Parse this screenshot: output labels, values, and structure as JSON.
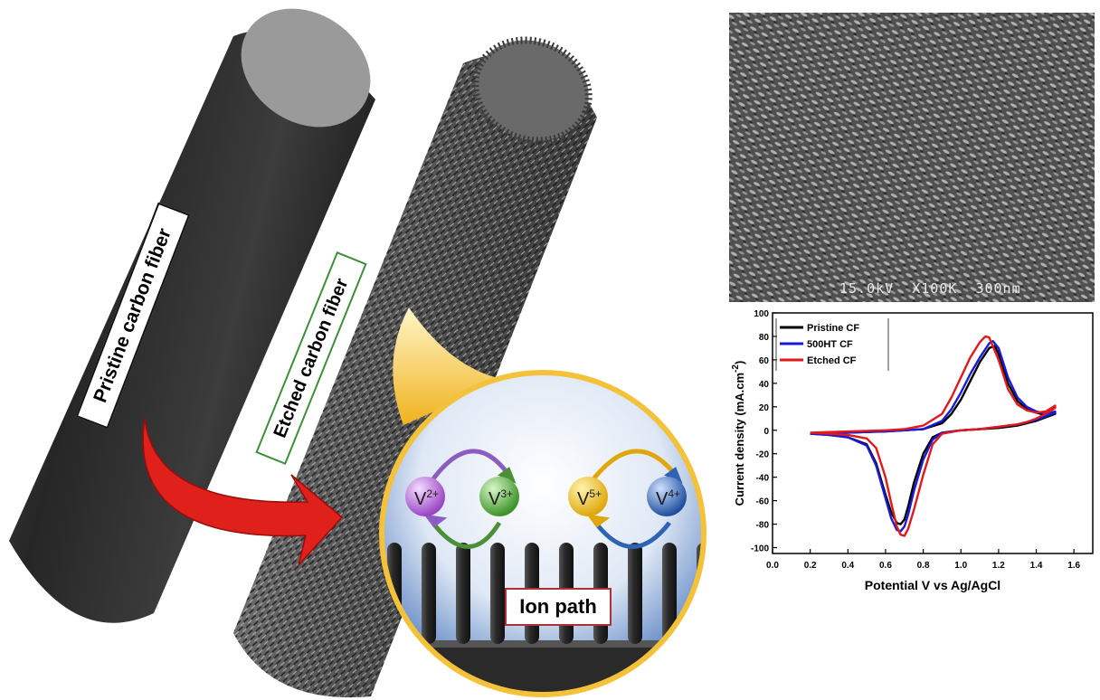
{
  "figure": {
    "pristine_label": "Pristine carbon fiber",
    "etched_label": "Etched carbon fiber",
    "ion_path_label": "Ion path",
    "ions": {
      "v2": {
        "base": "V",
        "charge": "2+",
        "color": "#b25fd6"
      },
      "v3": {
        "base": "V",
        "charge": "3+",
        "color": "#4fae3a"
      },
      "v5": {
        "base": "V",
        "charge": "5+",
        "color": "#f2c21a"
      },
      "v4": {
        "base": "V",
        "charge": "4+",
        "color": "#2f63b3"
      }
    },
    "sem_caption": "15.0kV  X100K  300nm",
    "colors": {
      "arrow": "#e0201b",
      "callout": "#f3c23a",
      "fiber": "#2b2b2b",
      "etched_border": "#3e8e3a",
      "ion_border": "#b0303a"
    }
  },
  "chart_data": {
    "type": "line",
    "xlabel": "Potential V vs Ag/AgCl",
    "ylabel": "Current density (mA.cm",
    "ylabel_sup": "-2",
    "ylabel_close": ")",
    "xlim": [
      0.0,
      1.7
    ],
    "ylim": [
      -105,
      100
    ],
    "xticks": [
      "0.0",
      "0.2",
      "0.4",
      "0.6",
      "0.8",
      "1.0",
      "1.2",
      "1.4",
      "1.6"
    ],
    "xtick_values": [
      0.0,
      0.2,
      0.4,
      0.6,
      0.8,
      1.0,
      1.2,
      1.4,
      1.6
    ],
    "yticks": [
      "100",
      "80",
      "60",
      "40",
      "20",
      "0",
      "-20",
      "-40",
      "-60",
      "-80",
      "-100"
    ],
    "ytick_values": [
      100,
      80,
      60,
      40,
      20,
      0,
      -20,
      -40,
      -60,
      -80,
      -100
    ],
    "legend_position": "top-left",
    "series": [
      {
        "name": "Pristine CF",
        "color": "#000000",
        "x": [
          0.2,
          0.3,
          0.4,
          0.5,
          0.6,
          0.7,
          0.8,
          0.9,
          0.95,
          1.0,
          1.05,
          1.1,
          1.15,
          1.18,
          1.2,
          1.25,
          1.3,
          1.35,
          1.4,
          1.45,
          1.5,
          1.5,
          1.45,
          1.4,
          1.35,
          1.3,
          1.25,
          1.2,
          1.1,
          1.0,
          0.9,
          0.85,
          0.8,
          0.75,
          0.72,
          0.7,
          0.68,
          0.66,
          0.63,
          0.6,
          0.55,
          0.5,
          0.4,
          0.3,
          0.2
        ],
        "y": [
          -3,
          -2.5,
          -2,
          -1.5,
          -1,
          0,
          1,
          6,
          14,
          26,
          42,
          58,
          70,
          72,
          65,
          40,
          25,
          18,
          15,
          13,
          15,
          14,
          11,
          8,
          6,
          4,
          3,
          2,
          1,
          0,
          -2,
          -6,
          -20,
          -45,
          -65,
          -76,
          -80,
          -79,
          -70,
          -55,
          -28,
          -12,
          -6,
          -4,
          -3
        ]
      },
      {
        "name": "500HT  CF",
        "color": "#1a1ad8",
        "x": [
          0.2,
          0.3,
          0.4,
          0.5,
          0.6,
          0.7,
          0.8,
          0.9,
          0.95,
          1.0,
          1.05,
          1.1,
          1.15,
          1.17,
          1.2,
          1.25,
          1.3,
          1.35,
          1.4,
          1.45,
          1.5,
          1.5,
          1.45,
          1.4,
          1.35,
          1.3,
          1.25,
          1.2,
          1.1,
          1.0,
          0.9,
          0.85,
          0.8,
          0.75,
          0.72,
          0.7,
          0.68,
          0.66,
          0.63,
          0.6,
          0.55,
          0.5,
          0.4,
          0.3,
          0.2
        ],
        "y": [
          -3,
          -2.5,
          -2,
          -1.5,
          -1,
          0,
          1,
          8,
          18,
          32,
          48,
          62,
          74,
          76,
          70,
          45,
          28,
          20,
          16,
          14,
          16,
          15,
          12,
          9,
          7,
          5,
          4,
          3,
          1,
          0,
          -2,
          -8,
          -25,
          -52,
          -72,
          -82,
          -86,
          -85,
          -75,
          -58,
          -30,
          -13,
          -6,
          -4,
          -3
        ]
      },
      {
        "name": "Etched CF",
        "color": "#e01a1a",
        "x": [
          0.2,
          0.3,
          0.4,
          0.5,
          0.6,
          0.7,
          0.8,
          0.9,
          0.95,
          1.0,
          1.05,
          1.1,
          1.13,
          1.15,
          1.2,
          1.25,
          1.3,
          1.35,
          1.4,
          1.45,
          1.5,
          1.5,
          1.45,
          1.4,
          1.35,
          1.3,
          1.25,
          1.2,
          1.1,
          1.0,
          0.9,
          0.85,
          0.8,
          0.75,
          0.72,
          0.7,
          0.68,
          0.66,
          0.63,
          0.6,
          0.55,
          0.5,
          0.4,
          0.3,
          0.2
        ],
        "y": [
          -2,
          -1.5,
          -1,
          -0.5,
          0,
          1,
          4,
          14,
          28,
          45,
          62,
          75,
          80,
          79,
          60,
          35,
          22,
          17,
          15,
          16,
          21,
          19,
          14,
          10,
          7,
          5,
          4,
          3,
          1,
          0,
          -3,
          -12,
          -38,
          -68,
          -84,
          -90,
          -89,
          -82,
          -62,
          -40,
          -15,
          -7,
          -4,
          -3,
          -2
        ]
      }
    ]
  }
}
